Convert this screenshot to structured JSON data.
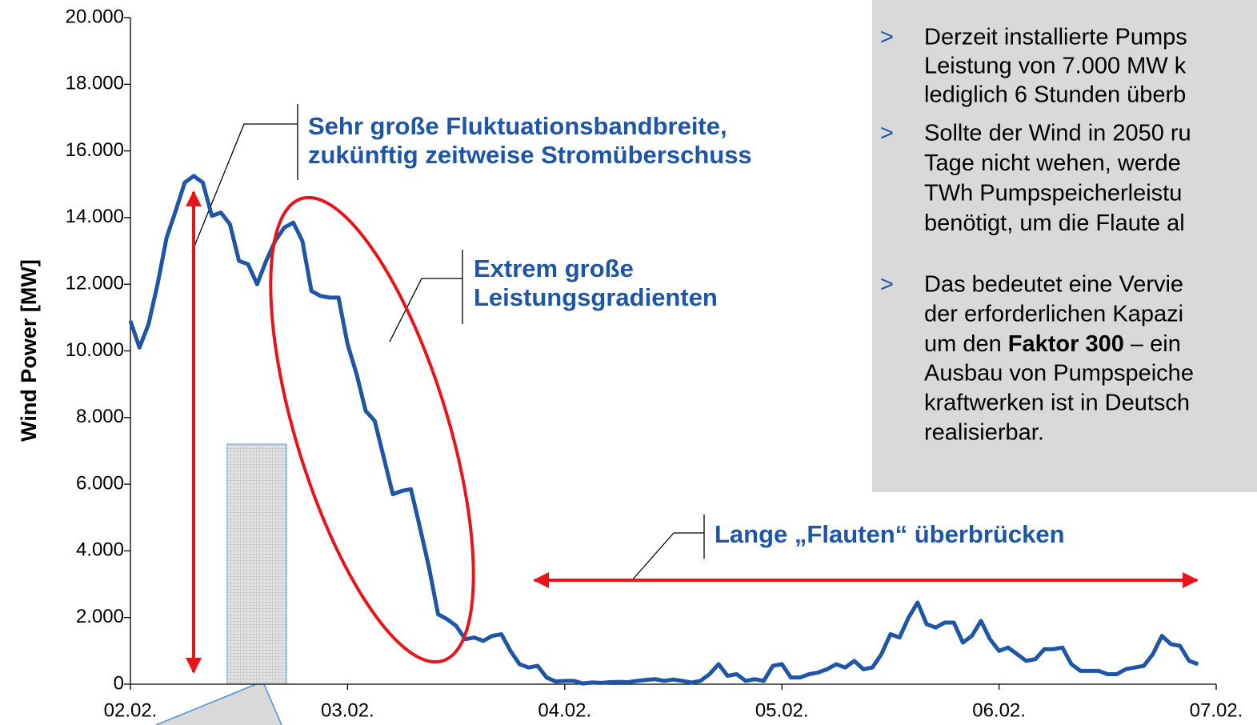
{
  "chart_data": {
    "type": "line",
    "y_label": "Wind Power [MW]",
    "xlim": [
      0,
      120
    ],
    "xticks": [
      {
        "value": 0,
        "label": "02.02."
      },
      {
        "value": 24,
        "label": "03.02."
      },
      {
        "value": 48,
        "label": "04.02."
      },
      {
        "value": 72,
        "label": "05.02."
      },
      {
        "value": 96,
        "label": "06.02."
      },
      {
        "value": 120,
        "label": "07.02."
      }
    ],
    "ylim": [
      0,
      20000
    ],
    "yticks": [
      {
        "value": 0,
        "label": "0"
      },
      {
        "value": 2000,
        "label": "2.000"
      },
      {
        "value": 4000,
        "label": "4.000"
      },
      {
        "value": 6000,
        "label": "6.000"
      },
      {
        "value": 8000,
        "label": "8.000"
      },
      {
        "value": 10000,
        "label": "10.000"
      },
      {
        "value": 12000,
        "label": "12.000"
      },
      {
        "value": 14000,
        "label": "14.000"
      },
      {
        "value": 16000,
        "label": "16.000"
      },
      {
        "value": 18000,
        "label": "18.000"
      },
      {
        "value": 20000,
        "label": "20.000"
      }
    ],
    "grid": false,
    "series": [
      {
        "color": "#1f55a5",
        "x": [
          0,
          1,
          2,
          3,
          4,
          5,
          6,
          7,
          8,
          9,
          10,
          11,
          12,
          13,
          14,
          15,
          16,
          17,
          18,
          19,
          20,
          21,
          22,
          23,
          24,
          25,
          26,
          27,
          28,
          29,
          30,
          31,
          32,
          33,
          34,
          35,
          36,
          37,
          38,
          39,
          40,
          41,
          42,
          43,
          44,
          45,
          46,
          47,
          48,
          49,
          50,
          51,
          52,
          53,
          54,
          55,
          56,
          57,
          58,
          59,
          60,
          61,
          62,
          63,
          64,
          65,
          66,
          67,
          68,
          69,
          70,
          71,
          72,
          73,
          74,
          75,
          76,
          77,
          78,
          79,
          80,
          81,
          82,
          83,
          84,
          85,
          86,
          87,
          88,
          89,
          90,
          91,
          92,
          93,
          94,
          95,
          96,
          97,
          98,
          99,
          100,
          101,
          102,
          103,
          104,
          105,
          106,
          107,
          108,
          109,
          110,
          111,
          112,
          113,
          114,
          115,
          116,
          117,
          118
        ],
        "values": [
          10900,
          10100,
          10800,
          12000,
          13400,
          14200,
          15050,
          15250,
          15050,
          14050,
          14150,
          13800,
          12700,
          12600,
          12000,
          12700,
          13300,
          13700,
          13850,
          13300,
          11800,
          11650,
          11600,
          11600,
          10200,
          9300,
          8200,
          7900,
          6800,
          5700,
          5800,
          5850,
          4700,
          3500,
          2100,
          1950,
          1750,
          1350,
          1400,
          1300,
          1450,
          1500,
          1000,
          600,
          500,
          550,
          200,
          80,
          100,
          100,
          20,
          50,
          40,
          60,
          70,
          60,
          100,
          130,
          150,
          100,
          140,
          100,
          50,
          100,
          300,
          600,
          250,
          300,
          100,
          150,
          100,
          550,
          600,
          200,
          200,
          300,
          350,
          450,
          600,
          500,
          700,
          450,
          500,
          900,
          1500,
          1400,
          2000,
          2450,
          1800,
          1700,
          1850,
          1850,
          1250,
          1450,
          1900,
          1350,
          1000,
          1100,
          900,
          700,
          750,
          1050,
          1050,
          1100,
          600,
          400,
          400,
          400,
          300,
          300,
          450,
          500,
          550,
          900,
          1450,
          1200,
          1150,
          700,
          600
        ]
      }
    ],
    "annotations": [
      [
        "Sehr große Fluktuationsbandbreite,",
        "zukünftig zeitweise Stromüberschuss"
      ],
      [
        "Extrem große",
        "Leistungsgradienten"
      ],
      [
        "Lange „Flauten“ überbrücken"
      ]
    ],
    "bullet_marker": ">",
    "bullets": [
      [
        "Derzeit installierte Pumps",
        "Leistung von 7.000 MW k",
        "lediglich 6 Stunden überb"
      ],
      [
        "Sollte der Wind in 2050 ru",
        "Tage nicht wehen, werde",
        "TWh Pumpspeicherleistu",
        "benötigt, um die Flaute al"
      ],
      [
        "Das bedeutet eine Vervie",
        "der erforderlichen Kapazi",
        [
          "um den ",
          "Faktor 300",
          " – ein"
        ],
        "Ausbau von Pumpspeiche",
        "kraftwerken ist in Deutsch",
        "realisierbar."
      ]
    ]
  }
}
